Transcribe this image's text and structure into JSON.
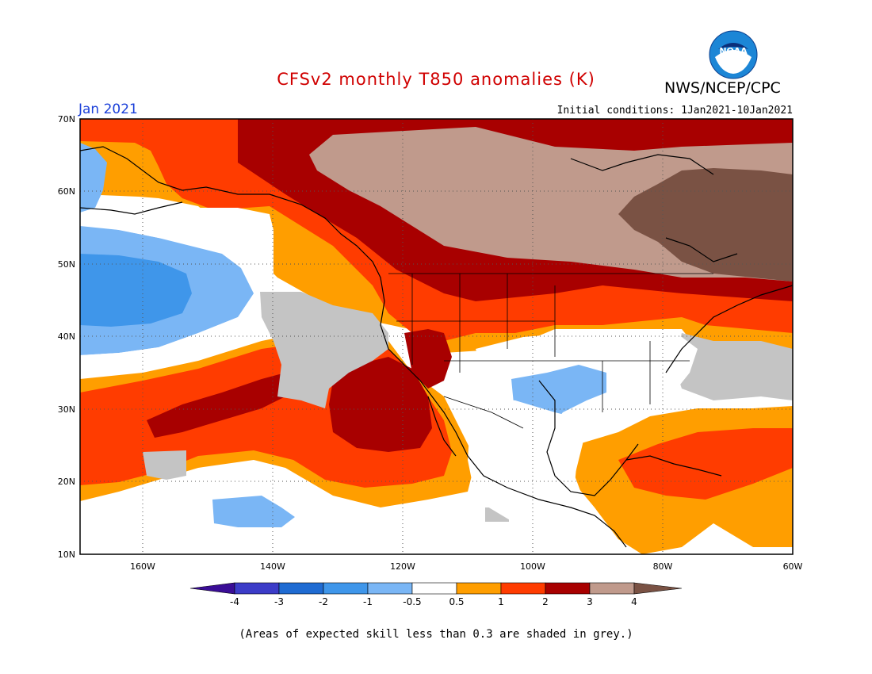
{
  "header": {
    "title": "CFSv2 monthly T850 anomalies (K)",
    "agency": "NWS/NCEP/CPC",
    "month": "Jan 2021",
    "initial_conditions": "Initial conditions: 1Jan2021-10Jan2021",
    "logo_text": "NOAA"
  },
  "footnote": "(Areas of expected skill less than 0.3 are shaded in grey.)",
  "map": {
    "lat_labels": [
      "70N",
      "60N",
      "50N",
      "40N",
      "30N",
      "20N",
      "10N"
    ],
    "lon_labels": [
      "160W",
      "140W",
      "120W",
      "100W",
      "80W",
      "60W"
    ],
    "lon_values": [
      -160,
      -140,
      -120,
      -100,
      -80,
      -60
    ],
    "lat_values": [
      70,
      60,
      50,
      40,
      30,
      20,
      10
    ],
    "extent": {
      "lon_min": -170,
      "lon_max": -60,
      "lat_min": 10,
      "lat_max": 70
    }
  },
  "colorbar": {
    "tick_labels": [
      "-4",
      "-3",
      "-2",
      "-1",
      "-0.5",
      "0.5",
      "1",
      "2",
      "3",
      "4"
    ],
    "colors": [
      "#3a0d96",
      "#3c3cc8",
      "#1f6bd2",
      "#3f96ea",
      "#7ab6f5",
      "#ffffff",
      "#ff9e00",
      "#ff3c00",
      "#a80000",
      "#c09a8c",
      "#7a5244"
    ]
  },
  "colors": {
    "title": "#d00000",
    "month": "#1a3fd9",
    "skill_grey": "#c4c4c4"
  }
}
